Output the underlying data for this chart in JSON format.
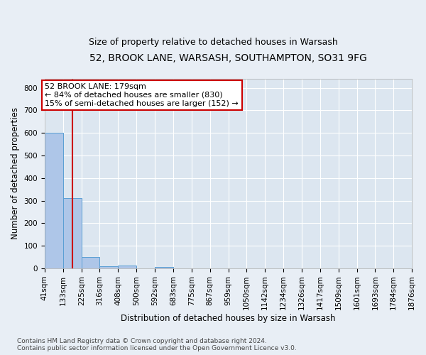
{
  "title1": "52, BROOK LANE, WARSASH, SOUTHAMPTON, SO31 9FG",
  "title2": "Size of property relative to detached houses in Warsash",
  "xlabel": "Distribution of detached houses by size in Warsash",
  "ylabel": "Number of detached properties",
  "bin_edges": [
    41,
    133,
    225,
    316,
    408,
    500,
    592,
    683,
    775,
    867,
    959,
    1050,
    1142,
    1234,
    1326,
    1417,
    1509,
    1601,
    1693,
    1784,
    1876
  ],
  "bar_heights": [
    600,
    310,
    50,
    10,
    13,
    0,
    7,
    0,
    0,
    0,
    0,
    0,
    0,
    0,
    0,
    0,
    0,
    0,
    0,
    0
  ],
  "bar_color": "#aec6e8",
  "bar_edgecolor": "#5a9fd4",
  "property_size": 179,
  "property_line_color": "#cc0000",
  "annotation_text": "52 BROOK LANE: 179sqm\n← 84% of detached houses are smaller (830)\n15% of semi-detached houses are larger (152) →",
  "annotation_box_color": "#ffffff",
  "annotation_box_edgecolor": "#cc0000",
  "ylim": [
    0,
    840
  ],
  "yticks": [
    0,
    100,
    200,
    300,
    400,
    500,
    600,
    700,
    800
  ],
  "bg_color": "#e8eef5",
  "plot_bg_color": "#dce6f0",
  "grid_color": "#ffffff",
  "footnote": "Contains HM Land Registry data © Crown copyright and database right 2024.\nContains public sector information licensed under the Open Government Licence v3.0.",
  "title1_fontsize": 10,
  "title2_fontsize": 9,
  "xlabel_fontsize": 8.5,
  "ylabel_fontsize": 8.5,
  "tick_fontsize": 7.5,
  "annotation_fontsize": 8,
  "footnote_fontsize": 6.5
}
